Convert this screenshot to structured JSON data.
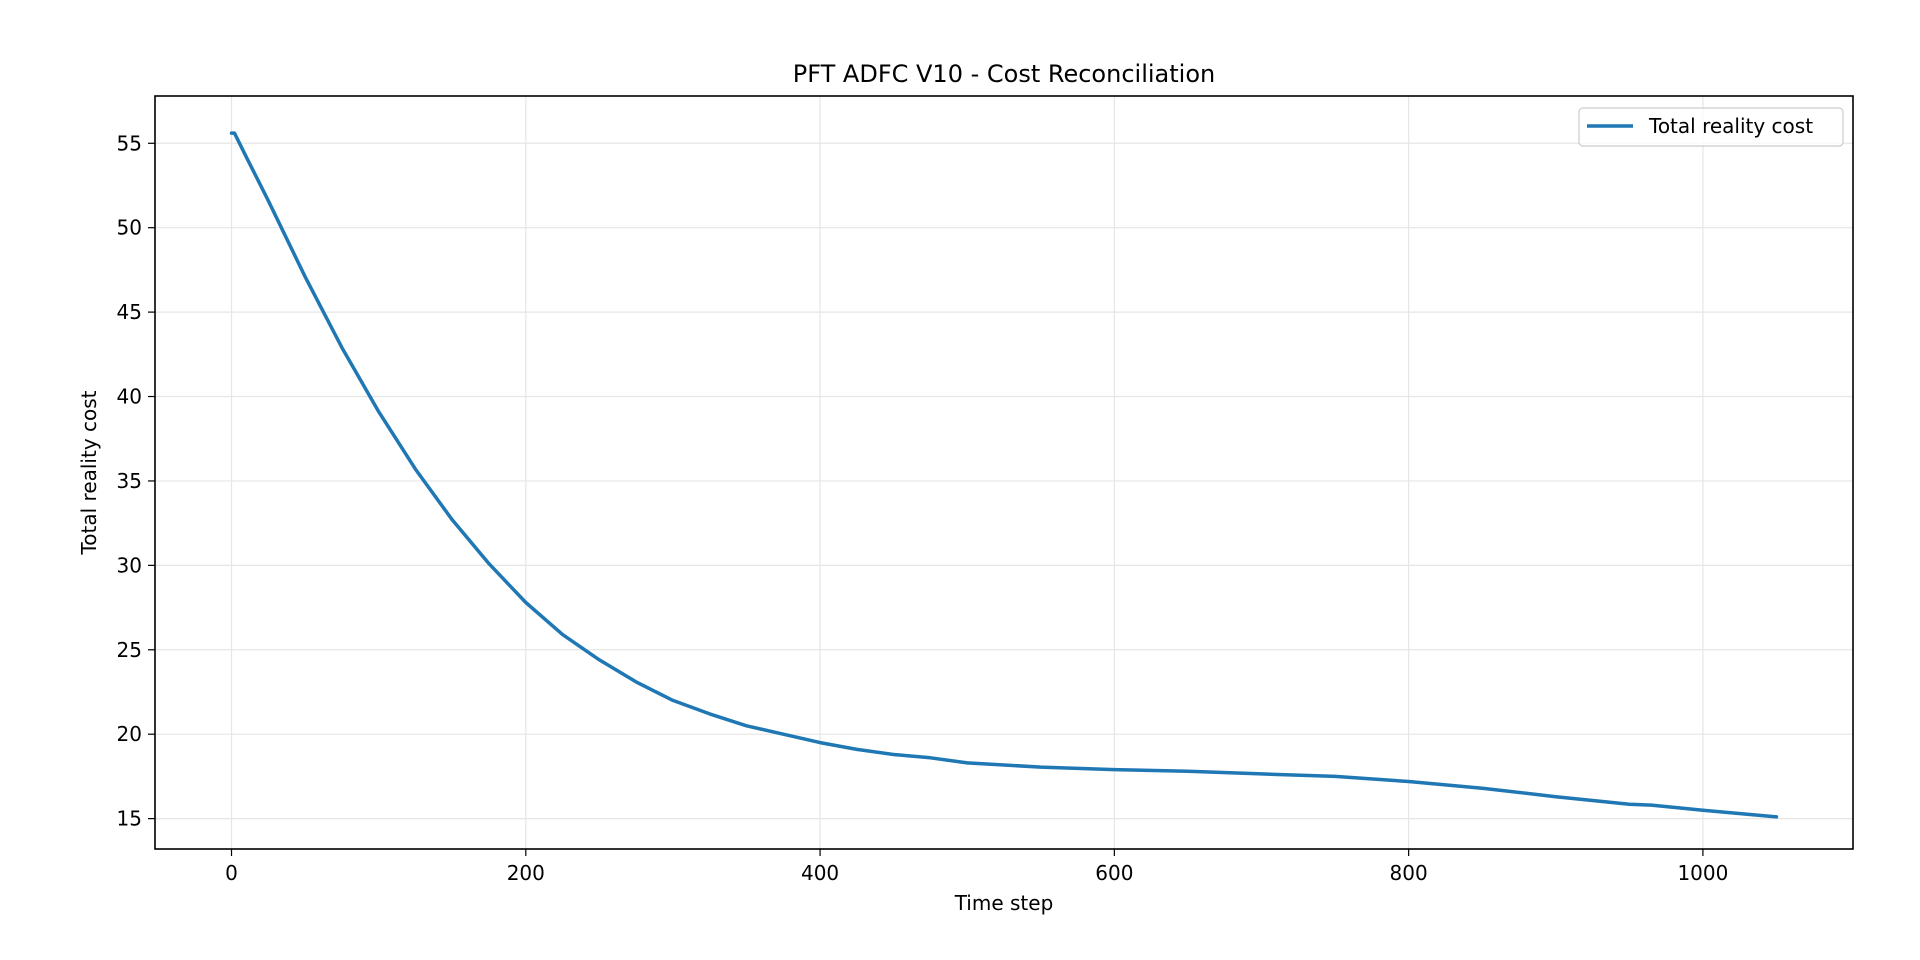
{
  "chart_data": {
    "type": "line",
    "title": "PFT ADFC V10 - Cost Reconciliation",
    "xlabel": "Time step",
    "ylabel": "Total reality cost",
    "xlim": [
      -52,
      1102
    ],
    "ylim": [
      13.2,
      57.8
    ],
    "xticks": [
      0,
      200,
      400,
      600,
      800,
      1000
    ],
    "yticks": [
      15,
      20,
      25,
      30,
      35,
      40,
      45,
      50,
      55
    ],
    "grid": true,
    "legend_position": "top-right",
    "series": [
      {
        "name": "Total reality cost",
        "color": "#1f77b4",
        "x": [
          0,
          2,
          10,
          25,
          50,
          75,
          100,
          125,
          150,
          175,
          200,
          225,
          250,
          275,
          300,
          325,
          350,
          375,
          400,
          425,
          450,
          475,
          500,
          550,
          600,
          650,
          700,
          750,
          800,
          850,
          900,
          950,
          965,
          1000,
          1050
        ],
        "y": [
          55.6,
          55.6,
          54.2,
          51.6,
          47.1,
          42.9,
          39.1,
          35.7,
          32.7,
          30.1,
          27.8,
          25.9,
          24.4,
          23.1,
          22.0,
          21.2,
          20.5,
          20.0,
          19.5,
          19.1,
          18.8,
          18.6,
          18.3,
          18.05,
          17.9,
          17.8,
          17.65,
          17.5,
          17.2,
          16.8,
          16.3,
          15.85,
          15.8,
          15.5,
          15.1
        ]
      }
    ]
  }
}
